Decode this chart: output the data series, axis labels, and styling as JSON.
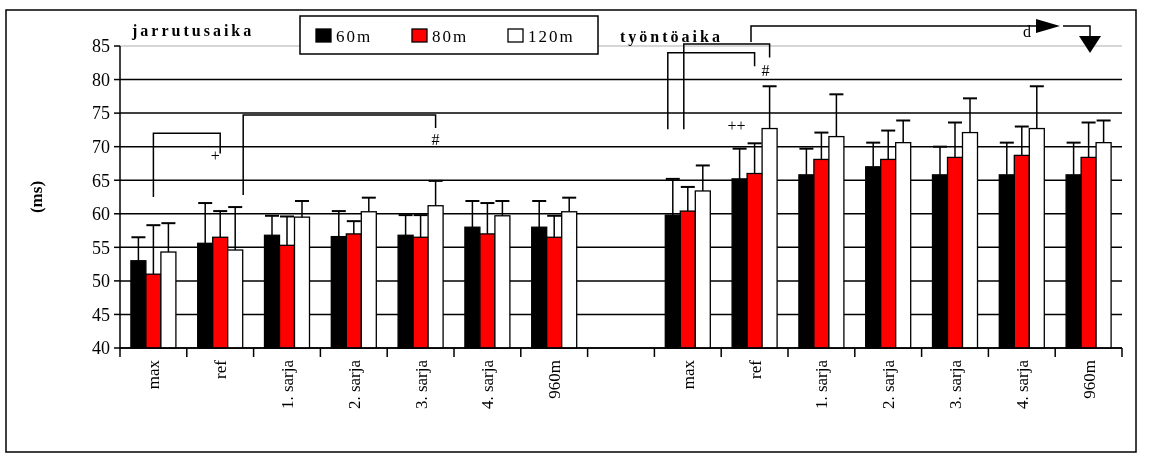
{
  "chart_data": {
    "type": "bar",
    "ylabel": "(ms)",
    "categories": [
      "max",
      "ref",
      "1. sarja",
      "2. sarja",
      "3. sarja",
      "4. sarja",
      "960m",
      null,
      "max",
      "ref",
      "1. sarja",
      "2. sarja",
      "3. sarja",
      "4. sarja",
      "960m"
    ],
    "series": [
      {
        "name": "60m",
        "color": "#000000",
        "values": [
          53,
          55.6,
          56.8,
          56.6,
          56.8,
          58,
          58,
          null,
          59.8,
          65.2,
          65.8,
          67,
          65.8,
          65.8,
          65.8
        ],
        "errors": [
          [
            53,
            56.5
          ],
          [
            55.6,
            61.6
          ],
          [
            56.8,
            59.7
          ],
          [
            56.6,
            60.4
          ],
          [
            56.8,
            59.8
          ],
          [
            58,
            61.9
          ],
          [
            58,
            61.9
          ],
          null,
          [
            59.8,
            65.2
          ],
          [
            65.2,
            69.7
          ],
          [
            65.8,
            69.7
          ],
          [
            67,
            70.6
          ],
          [
            65.8,
            70
          ],
          [
            65.8,
            70.6
          ],
          [
            65.8,
            70.6
          ]
        ]
      },
      {
        "name": "80m",
        "color": "#ff0000",
        "values": [
          51,
          56.5,
          55.3,
          57,
          56.5,
          57,
          56.5,
          null,
          60.4,
          66,
          68.1,
          68.1,
          68.4,
          68.7,
          68.4
        ],
        "errors": [
          [
            51,
            58.3
          ],
          [
            56.5,
            60.4
          ],
          [
            55.3,
            59.6
          ],
          [
            57,
            58.9
          ],
          [
            56.5,
            59.8
          ],
          [
            57,
            61.6
          ],
          [
            56.5,
            59.7
          ],
          null,
          [
            60.4,
            64
          ],
          [
            66,
            70.5
          ],
          [
            68.1,
            72.1
          ],
          [
            68.1,
            72.4
          ],
          [
            68.4,
            73.6
          ],
          [
            68.7,
            73
          ],
          [
            68.4,
            73.6
          ]
        ]
      },
      {
        "name": "120m",
        "color": "#ffffff",
        "values": [
          54.3,
          54.6,
          59.5,
          60.3,
          61.2,
          59.7,
          60.3,
          null,
          63.4,
          72.7,
          71.5,
          70.6,
          72.1,
          72.7,
          70.6
        ],
        "errors": [
          [
            54.3,
            58.6
          ],
          [
            54.6,
            61
          ],
          [
            59.5,
            61.9
          ],
          [
            60.3,
            62.4
          ],
          [
            61.2,
            64.9
          ],
          [
            59.7,
            61.9
          ],
          [
            60.3,
            62.4
          ],
          null,
          [
            63.4,
            67.2
          ],
          [
            72.7,
            79
          ],
          [
            71.5,
            77.8
          ],
          [
            70.6,
            73.9
          ],
          [
            72.1,
            77.2
          ],
          [
            72.7,
            79
          ],
          [
            70.6,
            73.9
          ]
        ]
      }
    ],
    "ylim": [
      40,
      85
    ],
    "yticks": [
      40,
      45,
      50,
      55,
      60,
      65,
      70,
      75,
      80,
      85
    ],
    "grid": "y",
    "legend": "top",
    "annotations": [
      "jarrutusaika",
      "työntöaika",
      "+",
      "#",
      "++",
      "#",
      "d"
    ]
  }
}
